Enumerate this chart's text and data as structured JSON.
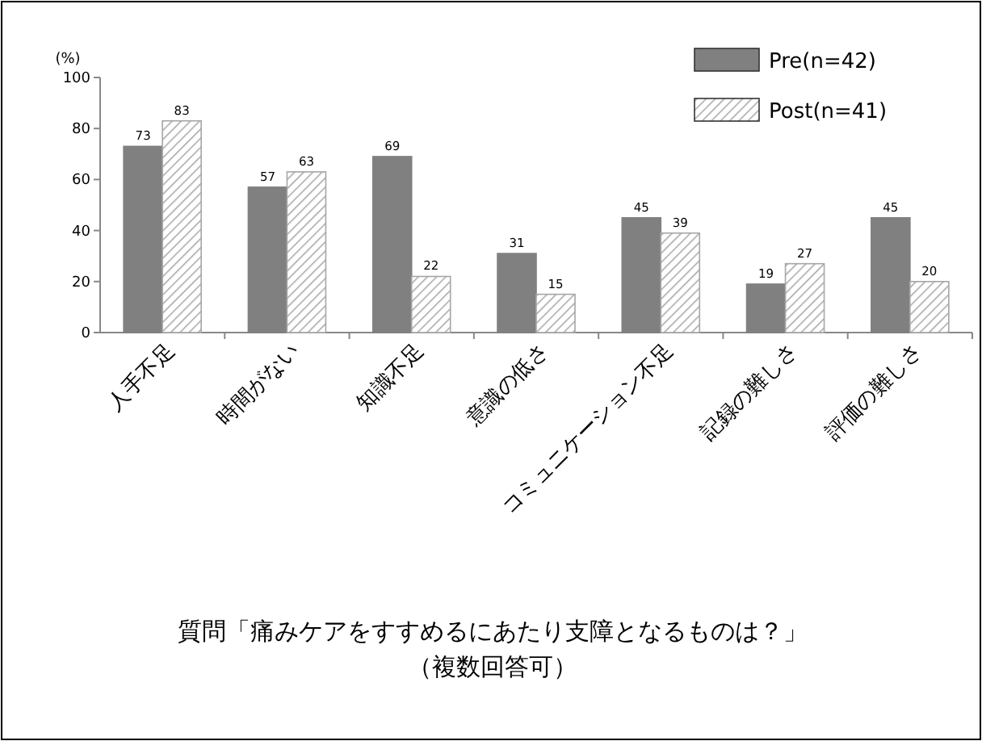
{
  "chart_data": {
    "type": "bar",
    "ylabel": "(%)",
    "categories": [
      "人手不足",
      "時間がない",
      "知識不足",
      "意識の低さ",
      "コミュニケーション不足",
      "記録の難しさ",
      "評価の難しさ"
    ],
    "series": [
      {
        "name": "Pre(n=42)",
        "color": "#808080",
        "values": [
          73,
          57,
          69,
          31,
          45,
          19,
          45
        ]
      },
      {
        "name": "Post(n=41)",
        "color": "#a6a6a6",
        "values": [
          83,
          63,
          22,
          15,
          39,
          27,
          20
        ]
      }
    ],
    "ylim": [
      0,
      100
    ],
    "yticks": [
      0,
      20,
      40,
      60,
      80,
      100
    ],
    "data_labels": true,
    "legend": "top right",
    "annotations": [
      "質問「痛みケアをすすめるにあたり支障となるものは？」",
      "（複数回答可）"
    ]
  }
}
